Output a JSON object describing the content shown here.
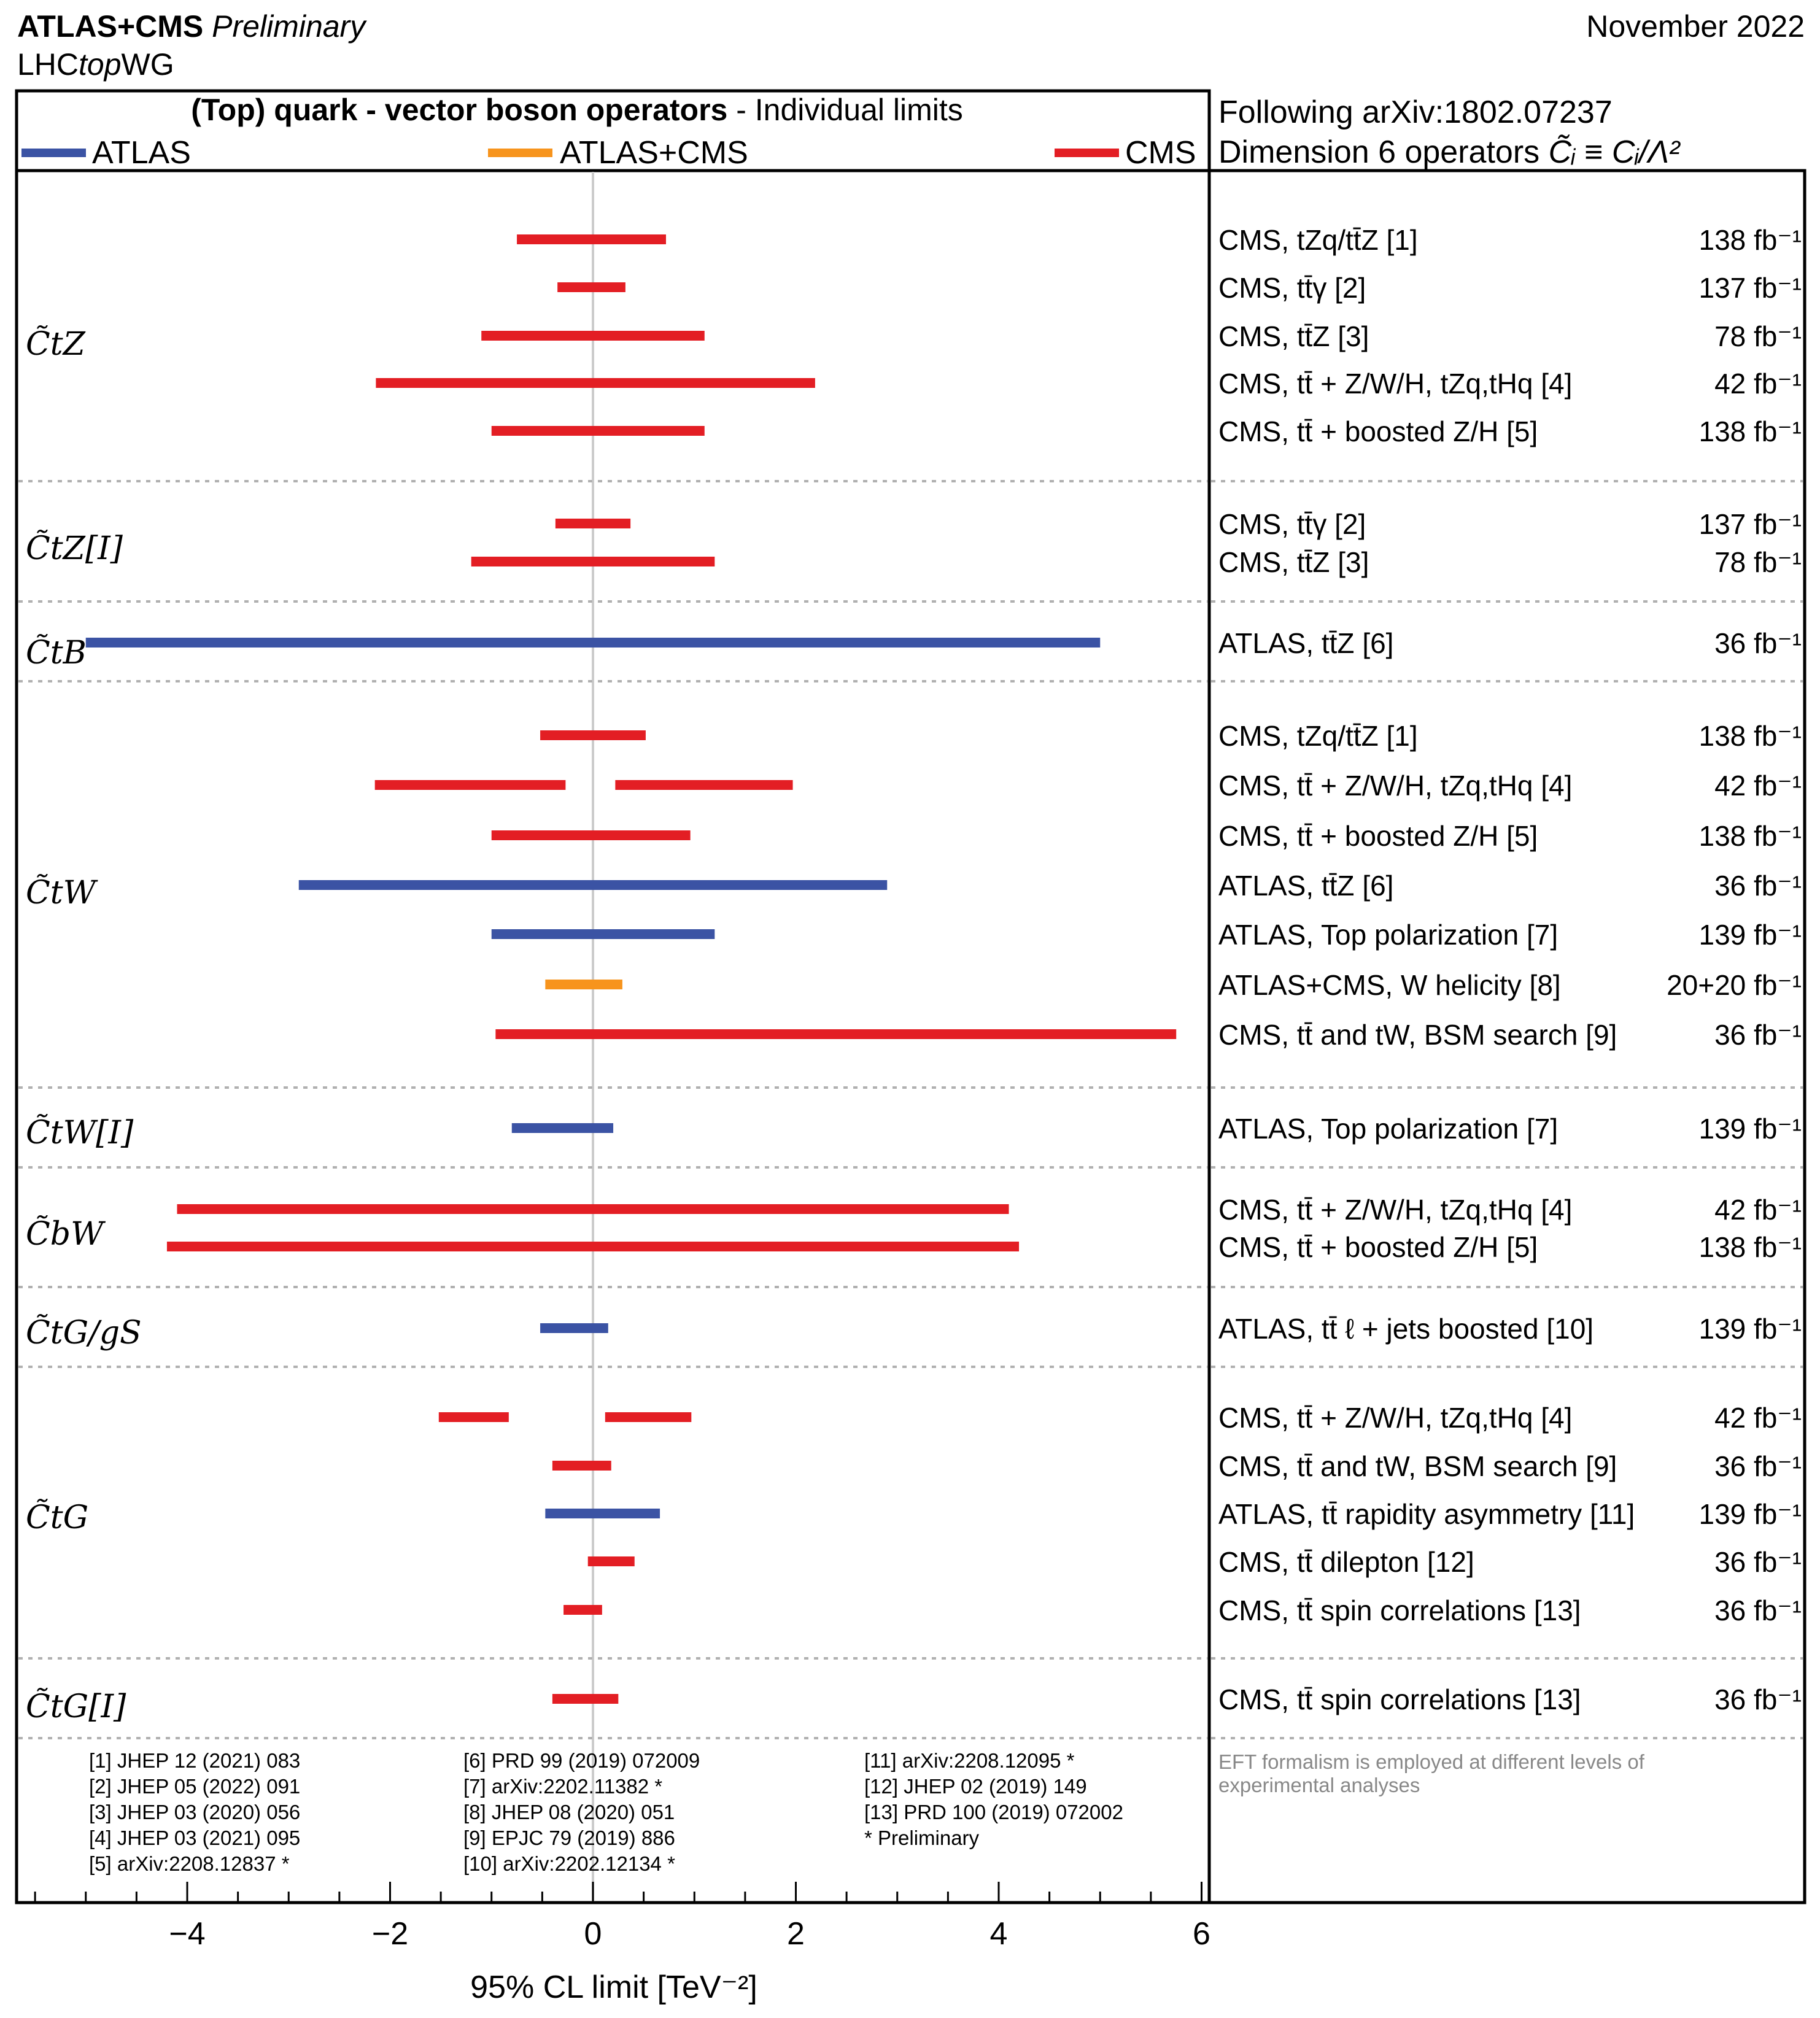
{
  "header": {
    "collab": "ATLAS+CMS",
    "status": "Preliminary",
    "group_prefix": "LHC",
    "group_italic": "top",
    "group_suffix": "WG",
    "date": "November 2022"
  },
  "legend": {
    "title_bold": "(Top) quark - vector boson operators",
    "title_rest": " - Individual limits",
    "entries": [
      {
        "name": "ATLAS",
        "color": "#3b53a4"
      },
      {
        "name": "ATLAS+CMS",
        "color": "#f7941d"
      },
      {
        "name": "CMS",
        "color": "#e31e24"
      }
    ]
  },
  "right_header": {
    "line1": "Following arXiv:1802.07237",
    "line2_text": "Dimension 6 operators",
    "line2_formula": "C̃ᵢ ≡ Cᵢ/Λ²"
  },
  "colors": {
    "atlas": "#3b53a4",
    "combo": "#f7941d",
    "cms": "#e31e24",
    "zero_line": "#cccccc",
    "separator": "#b0b0b0",
    "note": "#888888"
  },
  "chart_data": {
    "type": "interval",
    "xlim": [
      -5.8,
      6.1
    ],
    "xticks": [
      -4,
      -2,
      0,
      2,
      4,
      6
    ],
    "xticklabels": [
      "−4",
      "−2",
      "0",
      "2",
      "4",
      "6"
    ],
    "xlabel": "95% CL limit [TeV⁻²]",
    "groups": [
      {
        "label": "C̃tZ",
        "rows": [
          {
            "exp": "cms",
            "ranges": [
              [
                -0.75,
                0.72
              ]
            ],
            "label": "CMS, tZq/tt̄Z [1]",
            "lumi": "138 fb⁻¹"
          },
          {
            "exp": "cms",
            "ranges": [
              [
                -0.35,
                0.32
              ]
            ],
            "label": "CMS, tt̄γ [2]",
            "lumi": "137 fb⁻¹"
          },
          {
            "exp": "cms",
            "ranges": [
              [
                -1.1,
                1.1
              ]
            ],
            "label": "CMS, tt̄Z [3]",
            "lumi": "78 fb⁻¹"
          },
          {
            "exp": "cms",
            "ranges": [
              [
                -2.14,
                2.19
              ]
            ],
            "label": "CMS, tt̄ + Z/W/H, tZq,tHq [4]",
            "lumi": "42 fb⁻¹"
          },
          {
            "exp": "cms",
            "ranges": [
              [
                -1.0,
                1.1
              ]
            ],
            "label": "CMS, tt̄ + boosted Z/H [5]",
            "lumi": "138 fb⁻¹"
          }
        ]
      },
      {
        "label": "C̃tZ[I]",
        "rows": [
          {
            "exp": "cms",
            "ranges": [
              [
                -0.37,
                0.37
              ]
            ],
            "label": "CMS, tt̄γ [2]",
            "lumi": "137 fb⁻¹"
          },
          {
            "exp": "cms",
            "ranges": [
              [
                -1.2,
                1.2
              ]
            ],
            "label": "CMS, tt̄Z [3]",
            "lumi": "78 fb⁻¹"
          }
        ]
      },
      {
        "label": "C̃tB",
        "rows": [
          {
            "exp": "atlas",
            "ranges": [
              [
                -5.0,
                5.0
              ]
            ],
            "label": "ATLAS, tt̄Z [6]",
            "lumi": "36 fb⁻¹"
          }
        ]
      },
      {
        "label": "C̃tW",
        "rows": [
          {
            "exp": "cms",
            "ranges": [
              [
                -0.52,
                0.52
              ]
            ],
            "label": "CMS, tZq/tt̄Z [1]",
            "lumi": "138 fb⁻¹"
          },
          {
            "exp": "cms",
            "ranges": [
              [
                -2.15,
                -0.27
              ],
              [
                0.22,
                1.97
              ]
            ],
            "label": "CMS, tt̄ + Z/W/H, tZq,tHq [4]",
            "lumi": "42 fb⁻¹"
          },
          {
            "exp": "cms",
            "ranges": [
              [
                -1.0,
                0.96
              ]
            ],
            "label": "CMS, tt̄ + boosted Z/H [5]",
            "lumi": "138 fb⁻¹"
          },
          {
            "exp": "atlas",
            "ranges": [
              [
                -2.9,
                2.9
              ]
            ],
            "label": "ATLAS, tt̄Z [6]",
            "lumi": "36 fb⁻¹"
          },
          {
            "exp": "atlas",
            "ranges": [
              [
                -1.0,
                1.2
              ]
            ],
            "label": "ATLAS, Top polarization [7]",
            "lumi": "139 fb⁻¹"
          },
          {
            "exp": "combo",
            "ranges": [
              [
                -0.47,
                0.29
              ]
            ],
            "label": "ATLAS+CMS, W helicity [8]",
            "lumi": "20+20 fb⁻¹"
          },
          {
            "exp": "cms",
            "ranges": [
              [
                -0.96,
                5.75
              ]
            ],
            "label": "CMS, tt̄ and tW, BSM search [9]",
            "lumi": "36 fb⁻¹"
          }
        ]
      },
      {
        "label": "C̃tW[I]",
        "rows": [
          {
            "exp": "atlas",
            "ranges": [
              [
                -0.8,
                0.2
              ]
            ],
            "label": "ATLAS, Top polarization [7]",
            "lumi": "139 fb⁻¹"
          }
        ]
      },
      {
        "label": "C̃bW",
        "rows": [
          {
            "exp": "cms",
            "ranges": [
              [
                -4.1,
                4.1
              ]
            ],
            "label": "CMS, tt̄ + Z/W/H, tZq,tHq [4]",
            "lumi": "42 fb⁻¹"
          },
          {
            "exp": "cms",
            "ranges": [
              [
                -4.2,
                4.2
              ]
            ],
            "label": "CMS, tt̄ + boosted Z/H [5]",
            "lumi": "138 fb⁻¹"
          }
        ]
      },
      {
        "label": "C̃tG/gS",
        "rows": [
          {
            "exp": "atlas",
            "ranges": [
              [
                -0.52,
                0.15
              ]
            ],
            "label": "ATLAS, tt̄ ℓ + jets boosted [10]",
            "lumi": "139 fb⁻¹"
          }
        ]
      },
      {
        "label": "C̃tG",
        "rows": [
          {
            "exp": "cms",
            "ranges": [
              [
                -1.52,
                -0.83
              ],
              [
                0.12,
                0.97
              ]
            ],
            "label": "CMS, tt̄ + Z/W/H, tZq,tHq [4]",
            "lumi": "42 fb⁻¹"
          },
          {
            "exp": "cms",
            "ranges": [
              [
                -0.4,
                0.18
              ]
            ],
            "label": "CMS, tt̄ and tW, BSM search [9]",
            "lumi": "36 fb⁻¹"
          },
          {
            "exp": "atlas",
            "ranges": [
              [
                -0.47,
                0.66
              ]
            ],
            "label": "ATLAS, tt̄ rapidity asymmetry [11]",
            "lumi": "139 fb⁻¹"
          },
          {
            "exp": "cms",
            "ranges": [
              [
                -0.05,
                0.41
              ]
            ],
            "label": "CMS, tt̄ dilepton [12]",
            "lumi": "36 fb⁻¹"
          },
          {
            "exp": "cms",
            "ranges": [
              [
                -0.29,
                0.09
              ]
            ],
            "label": "CMS, tt̄ spin correlations [13]",
            "lumi": "36 fb⁻¹"
          }
        ]
      },
      {
        "label": "C̃tG[I]",
        "rows": [
          {
            "exp": "cms",
            "ranges": [
              [
                -0.4,
                0.25
              ]
            ],
            "label": "CMS, tt̄ spin correlations [13]",
            "lumi": "36 fb⁻¹"
          }
        ]
      }
    ]
  },
  "references": {
    "col1": [
      "[1] JHEP 12 (2021) 083",
      "[2] JHEP 05 (2022) 091",
      "[3] JHEP 03 (2020) 056",
      "[4] JHEP 03 (2021) 095",
      "[5] arXiv:2208.12837 *"
    ],
    "col2": [
      "[6] PRD 99 (2019) 072009",
      "[7] arXiv:2202.11382 *",
      "[8] JHEP 08 (2020) 051",
      "[9] EPJC 79 (2019) 886",
      "[10] arXiv:2202.12134 *"
    ],
    "col3": [
      "[11] arXiv:2208.12095 *",
      "[12] JHEP 02 (2019) 149",
      "[13] PRD 100 (2019) 072002",
      "* Preliminary"
    ]
  },
  "note": [
    "EFT formalism is employed at different levels of",
    "experimental analyses"
  ]
}
